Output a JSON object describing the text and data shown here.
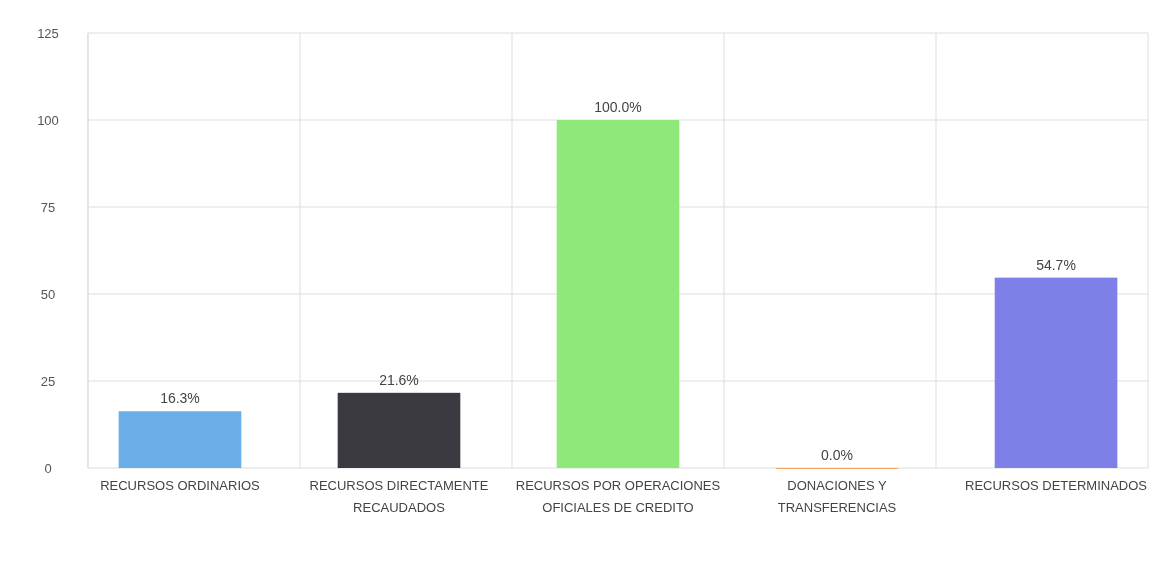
{
  "chart_data": {
    "type": "bar",
    "categories": [
      "RECURSOS ORDINARIOS",
      "RECURSOS DIRECTAMENTE RECAUDADOS",
      "RECURSOS POR OPERACIONES OFICIALES DE CREDITO",
      "DONACIONES Y TRANSFERENCIAS",
      "RECURSOS DETERMINADOS"
    ],
    "values": [
      16.3,
      21.6,
      100.0,
      0.0,
      54.7
    ],
    "colors": [
      "#6aaee8",
      "#3a3a40",
      "#8ee87a",
      "#f0a860",
      "#7f7fe8"
    ],
    "value_labels": [
      "16.3%",
      "21.6%",
      "100.0%",
      "0.0%",
      "54.7%"
    ],
    "ylim": [
      0,
      125
    ],
    "yticks": [
      0,
      25,
      50,
      75,
      100,
      125
    ],
    "grid": true
  }
}
